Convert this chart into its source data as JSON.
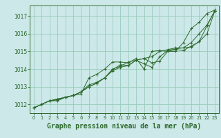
{
  "background_color": "#cce8e8",
  "plot_bg_color": "#cce8e8",
  "line_color": "#2d6a2d",
  "grid_color": "#99ccbb",
  "xlabel": "Graphe pression niveau de la mer (hPa)",
  "xlabel_fontsize": 7,
  "ylim": [
    1011.5,
    1017.6
  ],
  "xlim": [
    -0.5,
    23.5
  ],
  "yticks": [
    1012,
    1013,
    1014,
    1015,
    1016,
    1017
  ],
  "xticks": [
    0,
    1,
    2,
    3,
    4,
    5,
    6,
    7,
    8,
    9,
    10,
    11,
    12,
    13,
    14,
    15,
    16,
    17,
    18,
    19,
    20,
    21,
    22,
    23
  ],
  "series": [
    [
      1011.8,
      1012.0,
      1012.2,
      1012.2,
      1012.4,
      1012.5,
      1012.6,
      1013.5,
      1013.7,
      1014.0,
      1014.4,
      1014.4,
      1014.35,
      1014.6,
      1014.0,
      1015.0,
      1015.05,
      1015.0,
      1015.0,
      1015.5,
      1016.3,
      1016.65,
      1017.15,
      1017.35
    ],
    [
      1011.8,
      1012.0,
      1012.2,
      1012.25,
      1012.4,
      1012.5,
      1012.7,
      1013.1,
      1013.25,
      1013.5,
      1013.95,
      1014.25,
      1014.2,
      1014.5,
      1014.6,
      1014.35,
      1014.45,
      1015.0,
      1015.1,
      1015.05,
      1015.3,
      1015.55,
      1016.0,
      1017.3
    ],
    [
      1011.8,
      1012.0,
      1012.2,
      1012.3,
      1012.4,
      1012.5,
      1012.7,
      1013.0,
      1013.2,
      1013.5,
      1014.0,
      1014.15,
      1014.4,
      1014.5,
      1014.3,
      1014.1,
      1014.7,
      1015.05,
      1015.15,
      1015.2,
      1015.25,
      1015.55,
      1016.45,
      1017.3
    ],
    [
      1011.8,
      1012.0,
      1012.2,
      1012.3,
      1012.4,
      1012.5,
      1012.7,
      1013.0,
      1013.2,
      1013.5,
      1013.9,
      1014.1,
      1014.2,
      1014.5,
      1014.6,
      1014.7,
      1015.0,
      1015.1,
      1015.2,
      1015.2,
      1015.5,
      1016.0,
      1016.5,
      1017.3
    ]
  ]
}
